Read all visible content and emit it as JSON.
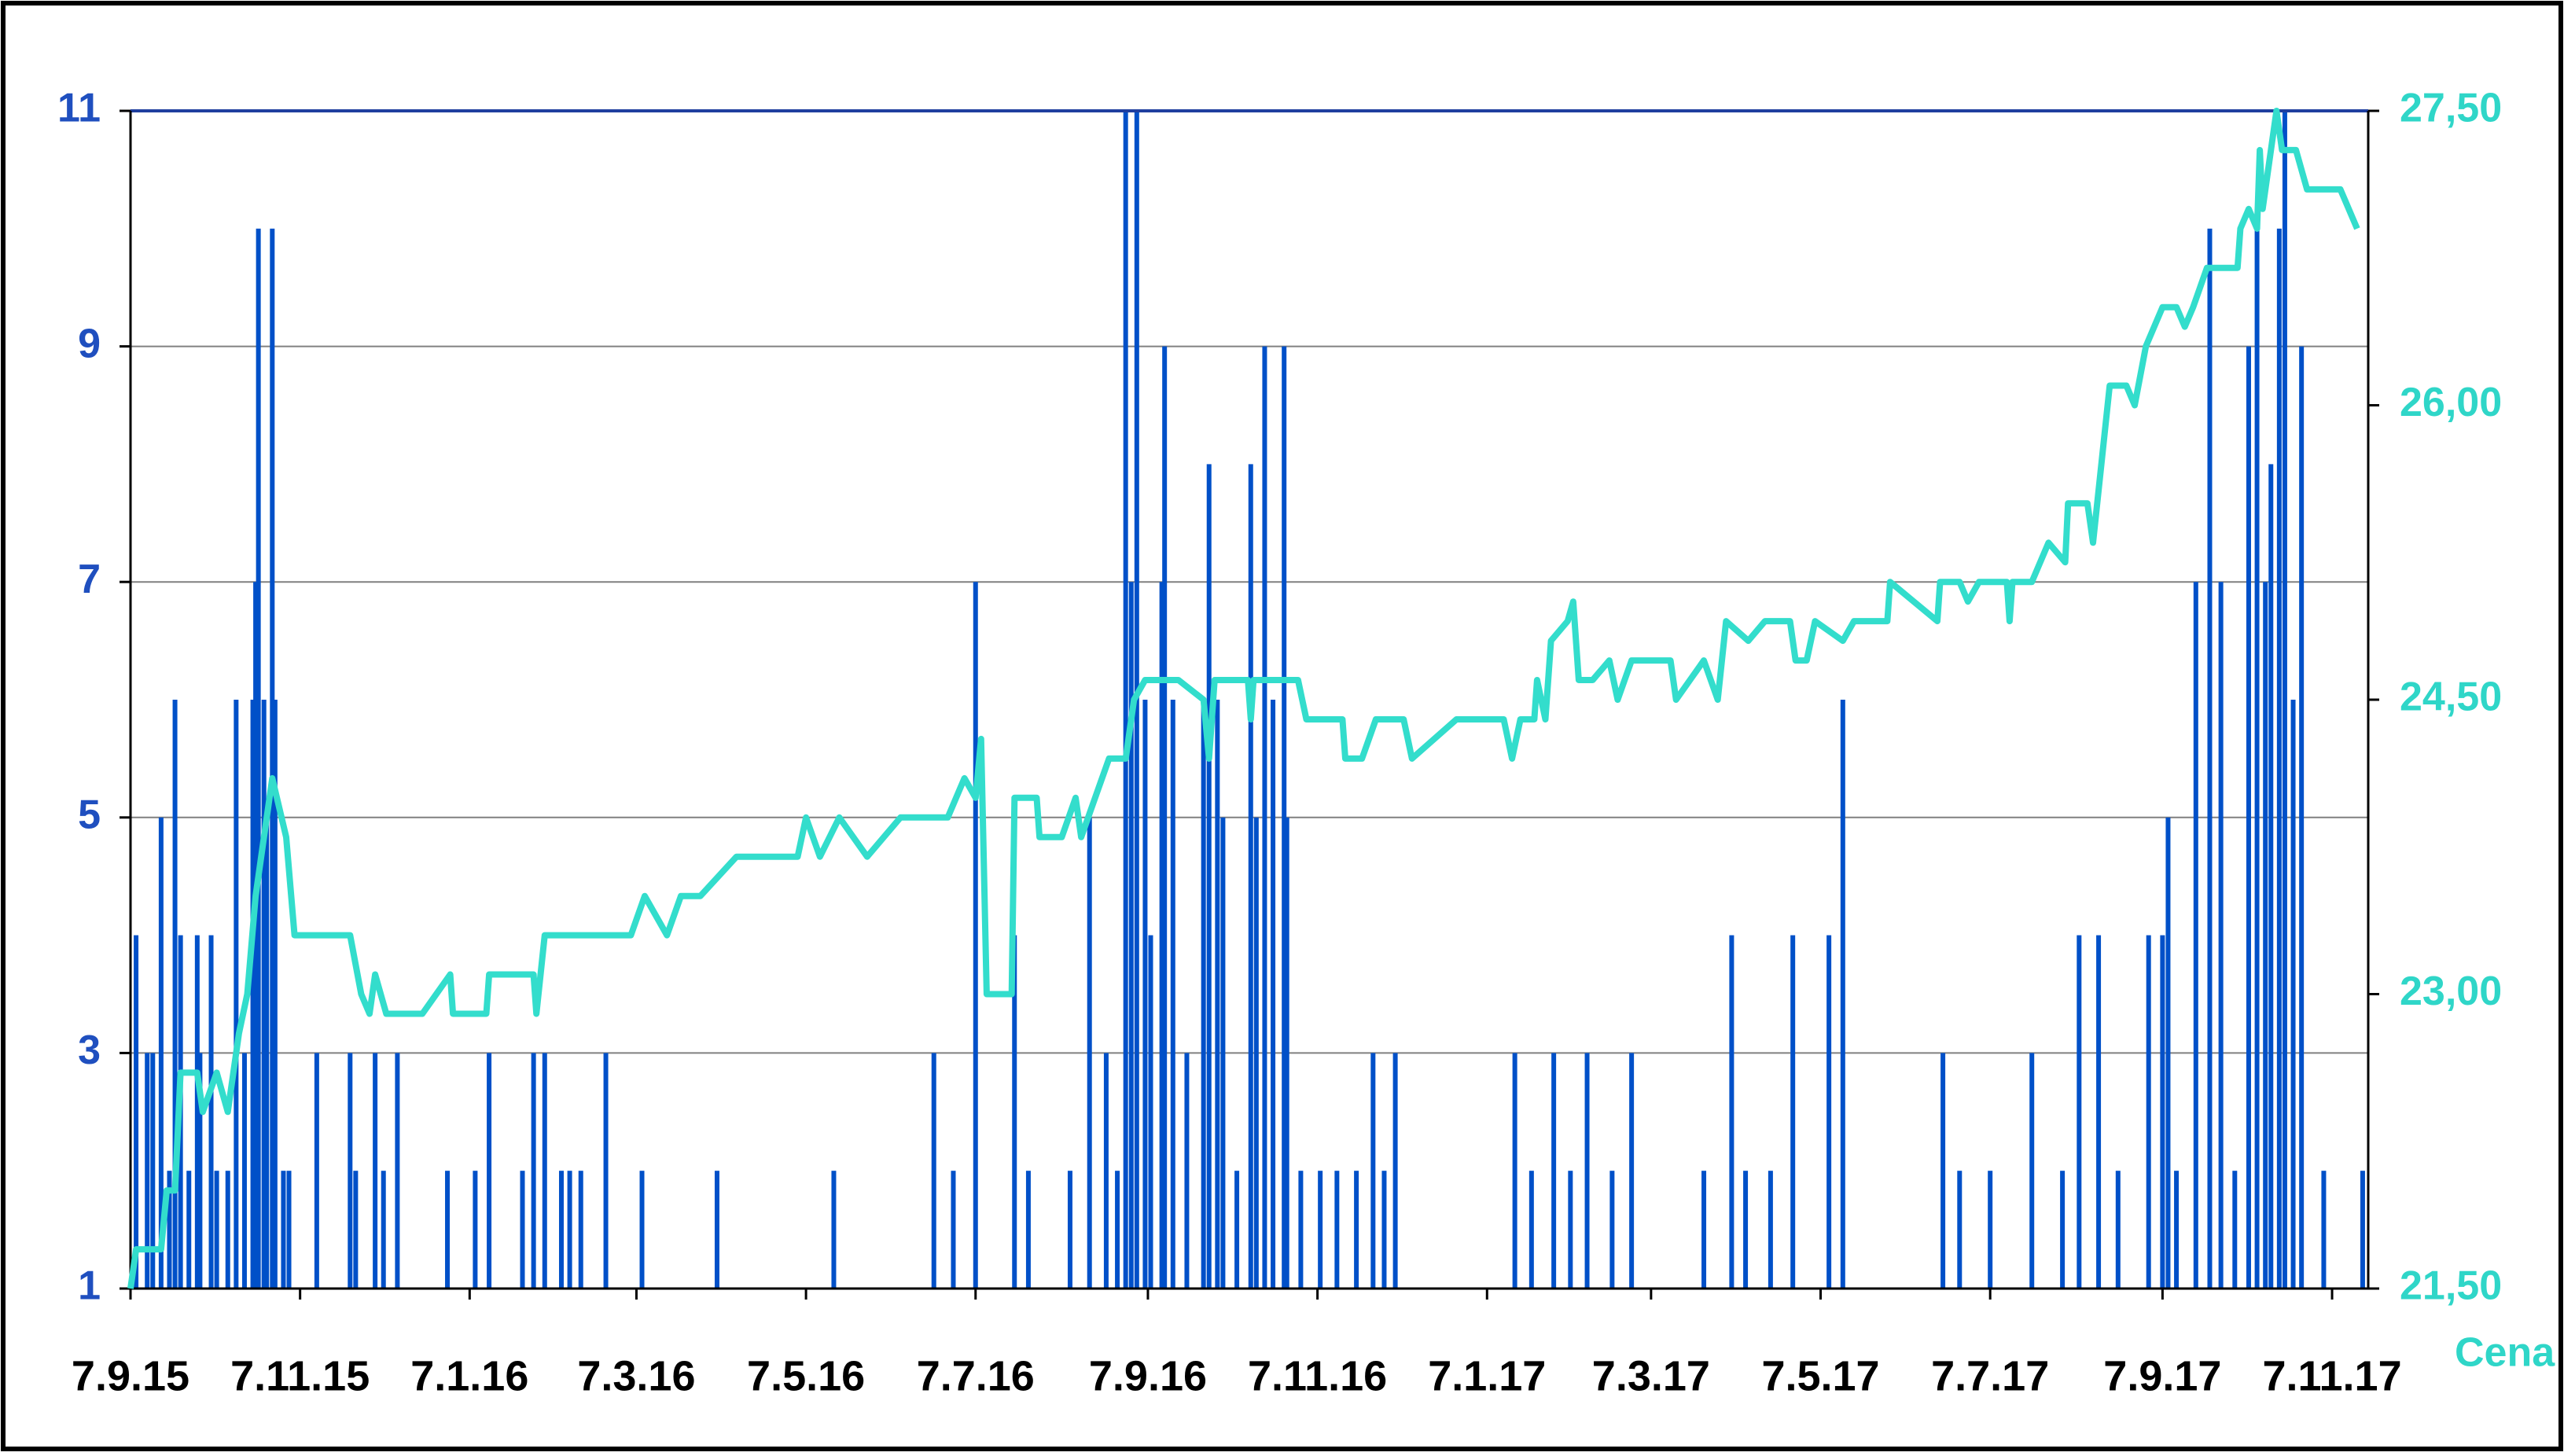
{
  "chart_data": {
    "type": "bar",
    "xlim": [
      "7.9.15",
      "20.11.17"
    ],
    "xticks": [
      "7.9.15",
      "7.11.15",
      "7.1.16",
      "7.3.16",
      "7.5.16",
      "7.7.16",
      "7.9.16",
      "7.11.16",
      "7.1.17",
      "7.3.17",
      "7.5.17",
      "7.7.17",
      "7.9.17",
      "7.11.17"
    ],
    "ylim": [
      1,
      11
    ],
    "yticks": [
      1,
      3,
      5,
      7,
      9,
      11
    ],
    "y2lim": [
      21.5,
      27.5
    ],
    "y2ticks": [
      {
        "value": 21.5,
        "label": "21,50"
      },
      {
        "value": 23,
        "label": "23,00"
      },
      {
        "value": 24.5,
        "label": "24,50"
      },
      {
        "value": 26,
        "label": "26,00"
      },
      {
        "value": 27.5,
        "label": "27,50"
      }
    ],
    "y2label": "Cena",
    "grid": true,
    "series": [
      {
        "type": "bar",
        "color": "#0050c8",
        "x": [
          "9.9.15",
          "13.9.15",
          "15.9.15",
          "18.9.15",
          "21.9.15",
          "23.9.15",
          "25.9.15",
          "28.9.15",
          "1.10.15",
          "2.10.15",
          "6.10.15",
          "8.10.15",
          "12.10.15",
          "15.10.15",
          "18.10.15",
          "21.10.15",
          "22.10.15",
          "23.10.15",
          "25.10.15",
          "26.10.15",
          "28.10.15",
          "29.10.15",
          "1.11.15",
          "3.11.15",
          "13.11.15",
          "25.11.15",
          "27.11.15",
          "4.12.15",
          "7.12.15",
          "12.12.15",
          "30.12.15",
          "9.1.16",
          "14.1.16",
          "26.1.16",
          "30.1.16",
          "3.2.16",
          "9.2.16",
          "12.2.16",
          "16.2.16",
          "25.2.16",
          "9.3.16",
          "5.4.16",
          "17.5.16",
          "22.6.16",
          "29.6.16",
          "7.7.16",
          "21.7.16",
          "26.7.16",
          "10.8.16",
          "17.8.16",
          "23.8.16",
          "27.8.16",
          "30.8.16",
          "1.9.16",
          "3.9.16",
          "6.9.16",
          "8.9.16",
          "12.9.16",
          "13.9.16",
          "16.9.16",
          "21.9.16",
          "27.9.16",
          "29.9.16",
          "2.10.16",
          "4.10.16",
          "9.10.16",
          "14.10.16",
          "16.10.16",
          "19.10.16",
          "22.10.16",
          "26.10.16",
          "27.10.16",
          "1.11.16",
          "8.11.16",
          "14.11.16",
          "21.11.16",
          "27.11.16",
          "1.12.16",
          "5.12.16",
          "17.1.17",
          "23.1.17",
          "31.1.17",
          "6.2.17",
          "12.2.17",
          "21.2.17",
          "28.2.17",
          "26.3.17",
          "5.4.17",
          "10.4.17",
          "19.4.17",
          "27.4.17",
          "10.5.17",
          "15.5.17",
          "20.6.17",
          "26.6.17",
          "7.7.17",
          "22.7.17",
          "2.8.17",
          "8.8.17",
          "15.8.17",
          "22.8.17",
          "2.9.17",
          "7.9.17",
          "9.9.17",
          "12.9.17",
          "19.9.17",
          "24.9.17",
          "28.9.17",
          "3.10.17",
          "8.10.17",
          "11.10.17",
          "14.10.17",
          "16.10.17",
          "19.10.17",
          "21.10.17",
          "24.10.17",
          "27.10.17",
          "4.11.17",
          "18.11.17"
        ],
        "values": [
          4,
          3,
          3,
          5,
          2,
          6,
          4,
          2,
          4,
          3,
          4,
          2,
          2,
          6,
          3,
          6,
          7,
          10,
          6,
          5,
          10,
          6,
          2,
          2,
          3,
          3,
          2,
          3,
          2,
          3,
          2,
          2,
          3,
          2,
          3,
          3,
          2,
          2,
          2,
          3,
          2,
          2,
          2,
          3,
          2,
          7,
          4,
          2,
          2,
          5,
          3,
          2,
          11,
          7,
          11,
          6,
          4,
          7,
          9,
          6,
          3,
          6,
          8,
          6,
          5,
          2,
          8,
          5,
          9,
          6,
          9,
          5,
          2,
          2,
          2,
          2,
          3,
          2,
          3,
          3,
          2,
          3,
          2,
          3,
          2,
          3,
          2,
          4,
          2,
          2,
          4,
          4,
          6,
          3,
          2,
          2,
          3,
          2,
          4,
          4,
          2,
          4,
          4,
          5,
          2,
          7,
          10,
          7,
          2,
          9,
          10,
          7,
          8,
          10,
          11,
          6,
          9,
          2,
          2
        ]
      },
      {
        "type": "line",
        "axis": "y2",
        "color": "#33ddcc",
        "x": [
          "7.9.15",
          "9.9.15",
          "18.9.15",
          "20.9.15",
          "23.9.15",
          "25.9.15",
          "1.10.15",
          "3.10.15",
          "8.10.15",
          "12.10.15",
          "16.10.15",
          "19.10.15",
          "22.10.15",
          "24.10.15",
          "28.10.15",
          "2.11.15",
          "5.11.15",
          "25.11.15",
          "29.11.15",
          "2.12.15",
          "4.12.15",
          "8.12.15",
          "21.12.15",
          "31.12.15",
          "1.1.16",
          "13.1.16",
          "14.1.16",
          "30.1.16",
          "31.1.16",
          "3.2.16",
          "5.3.16",
          "10.3.16",
          "18.3.16",
          "23.3.16",
          "30.3.16",
          "12.4.16",
          "4.5.16",
          "7.5.16",
          "12.5.16",
          "19.5.16",
          "29.5.16",
          "10.6.16",
          "27.6.16",
          "3.7.16",
          "7.7.16",
          "9.7.16",
          "11.7.16",
          "20.7.16",
          "21.7.16",
          "29.7.16",
          "30.7.16",
          "7.8.16",
          "12.8.16",
          "14.8.16",
          "19.8.16",
          "24.8.16",
          "30.8.16",
          "2.9.16",
          "6.9.16",
          "18.9.16",
          "27.9.16",
          "29.9.16",
          "1.10.16",
          "13.10.16",
          "14.10.16",
          "15.10.16",
          "31.10.16",
          "3.11.16",
          "16.11.16",
          "17.11.16",
          "23.11.16",
          "28.11.16",
          "8.12.16",
          "11.12.16",
          "27.12.16",
          "13.1.17",
          "16.1.17",
          "19.1.17",
          "24.1.17",
          "25.1.17",
          "28.1.17",
          "30.1.17",
          "5.2.17",
          "7.2.17",
          "9.2.17",
          "14.2.17",
          "20.2.17",
          "23.2.17",
          "28.2.17",
          "14.3.17",
          "16.3.17",
          "26.3.17",
          "31.3.17",
          "3.4.17",
          "11.4.17",
          "17.4.17",
          "26.4.17",
          "28.4.17",
          "2.5.17",
          "5.5.17",
          "15.5.17",
          "19.5.17",
          "31.5.17",
          "1.6.17",
          "18.6.17",
          "19.6.17",
          "26.6.17",
          "29.6.17",
          "3.7.17",
          "13.7.17",
          "14.7.17",
          "15.7.17",
          "22.7.17",
          "28.7.17",
          "3.8.17",
          "4.8.17",
          "11.8.17",
          "13.8.17",
          "19.8.17",
          "25.8.17",
          "28.8.17",
          "1.9.17",
          "7.9.17",
          "12.9.17",
          "15.9.17",
          "18.9.17",
          "23.9.17",
          "4.10.17",
          "5.10.17",
          "8.10.17",
          "11.10.17",
          "12.10.17",
          "13.10.17",
          "18.10.17",
          "20.10.17",
          "25.10.17",
          "29.10.17",
          "10.11.17",
          "16.11.17"
        ],
        "values": [
          21.5,
          21.7,
          21.7,
          22.0,
          22.0,
          22.6,
          22.6,
          22.4,
          22.6,
          22.4,
          22.8,
          23.0,
          23.5,
          23.7,
          24.1,
          23.8,
          23.3,
          23.3,
          23.0,
          22.9,
          23.1,
          22.9,
          22.9,
          23.1,
          22.9,
          22.9,
          23.1,
          23.1,
          22.9,
          23.3,
          23.3,
          23.5,
          23.3,
          23.5,
          23.5,
          23.7,
          23.7,
          23.9,
          23.7,
          23.9,
          23.7,
          23.9,
          23.9,
          24.1,
          24.0,
          24.3,
          23.0,
          23.0,
          24.0,
          24.0,
          23.8,
          23.8,
          24.0,
          23.8,
          24.0,
          24.2,
          24.2,
          24.5,
          24.6,
          24.6,
          24.5,
          24.2,
          24.6,
          24.6,
          24.4,
          24.6,
          24.6,
          24.4,
          24.4,
          24.2,
          24.2,
          24.4,
          24.4,
          24.2,
          24.4,
          24.4,
          24.2,
          24.4,
          24.4,
          24.6,
          24.4,
          24.8,
          24.9,
          25.0,
          24.6,
          24.6,
          24.7,
          24.5,
          24.7,
          24.7,
          24.5,
          24.7,
          24.5,
          24.9,
          24.8,
          24.9,
          24.9,
          24.7,
          24.7,
          24.9,
          24.8,
          24.9,
          24.9,
          25.1,
          24.9,
          25.1,
          25.1,
          25.0,
          25.1,
          25.1,
          24.9,
          25.1,
          25.1,
          25.3,
          25.2,
          25.5,
          25.5,
          25.3,
          26.1,
          26.1,
          26.0,
          26.3,
          26.5,
          26.5,
          26.4,
          26.5,
          26.7,
          26.7,
          26.9,
          27.0,
          26.9,
          27.3,
          27.0,
          27.5,
          27.3,
          27.3,
          27.1,
          27.1,
          26.9
        ]
      }
    ]
  }
}
